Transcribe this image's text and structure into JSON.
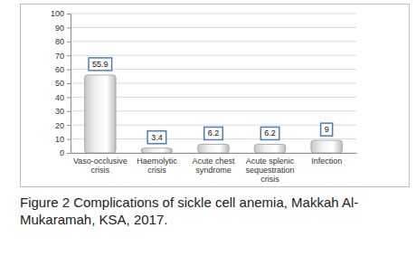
{
  "chart_data": {
    "type": "bar",
    "title": "Figure 2 Complications of sickle cell anemia, Makkah Al-Mukaramah, KSA, 2017.",
    "categories": [
      "Vaso-occlusive crisis",
      "Haemolytic crisis",
      "Acute chest syndrome",
      "Acute splenic sequestration crisis",
      "Infection"
    ],
    "values": [
      55.9,
      3.4,
      6.2,
      6.2,
      9
    ],
    "color": "#f2f2f2",
    "ylim": [
      0,
      100
    ],
    "yticks": [
      0,
      10,
      20,
      30,
      40,
      50,
      60,
      70,
      80,
      90,
      100
    ],
    "grid": true,
    "data_labels": true
  }
}
